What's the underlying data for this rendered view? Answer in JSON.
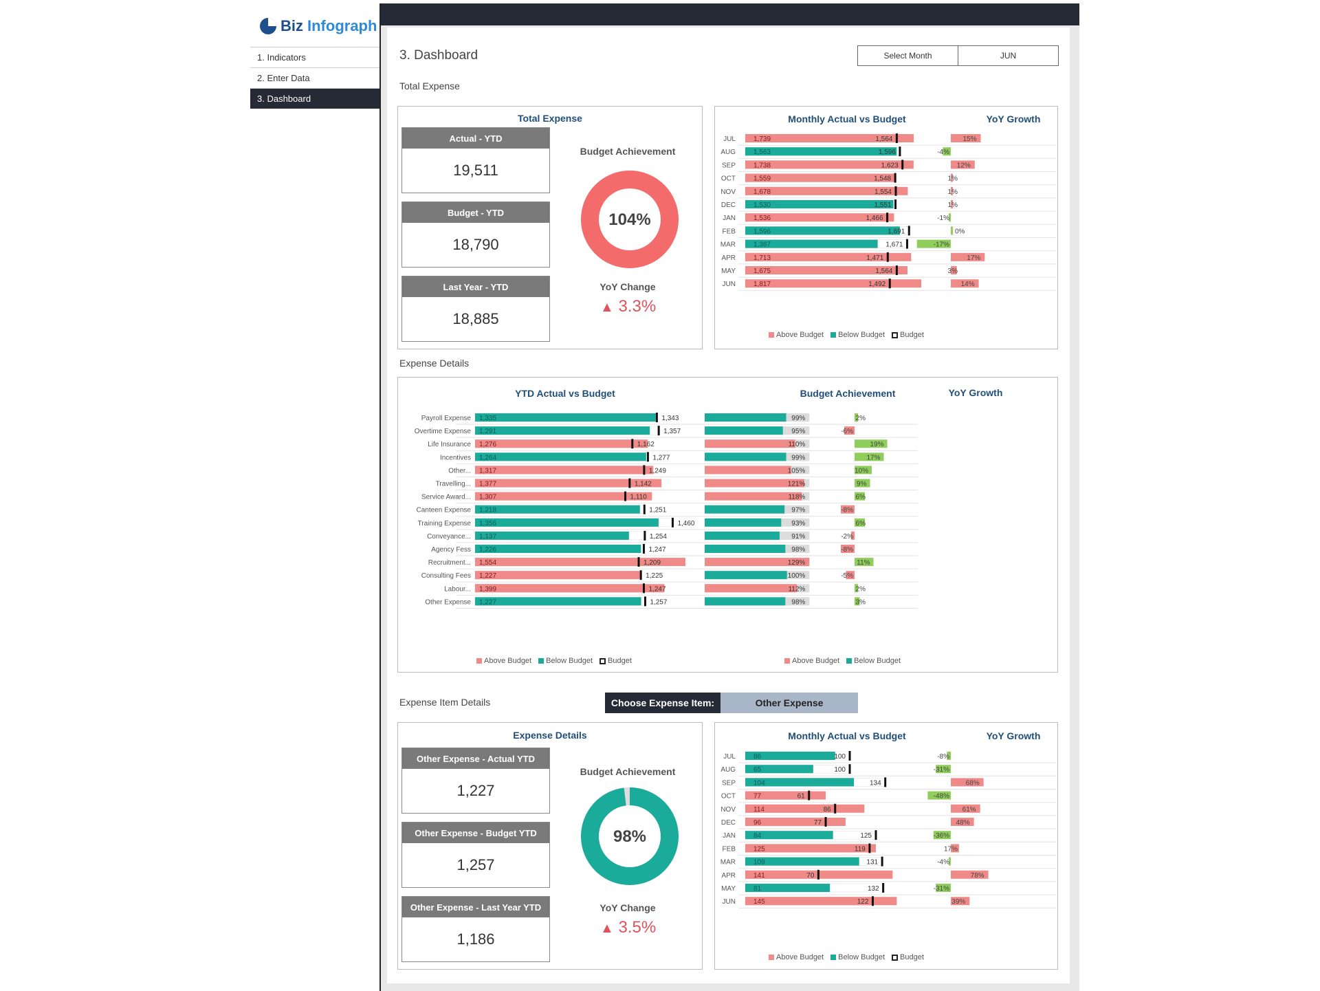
{
  "app": {
    "logo_part1": "Biz",
    "logo_part2": "Infograph"
  },
  "nav": [
    "1. Indicators",
    "2. Enter Data",
    "3. Dashboard"
  ],
  "page_title": "3. Dashboard",
  "month_select": {
    "label": "Select Month",
    "value": "JUN"
  },
  "sections": {
    "total_expense": "Total Expense",
    "expense_details": "Expense Details",
    "expense_item_details": "Expense Item Details"
  },
  "total_panel": {
    "title": "Total Expense",
    "kpis": [
      {
        "label": "Actual - YTD",
        "value": "19,511"
      },
      {
        "label": "Budget - YTD",
        "value": "18,790"
      },
      {
        "label": "Last Year - YTD",
        "value": "18,885"
      }
    ],
    "budget_achievement_label": "Budget Achievement",
    "budget_achievement_value": "104%",
    "budget_achievement_fraction": 1.04,
    "yoy_label": "YoY Change",
    "yoy_value": "3.3%"
  },
  "item_panel": {
    "title": "Expense Details",
    "kpis": [
      {
        "label": "Other Expense - Actual YTD",
        "value": "1,227"
      },
      {
        "label": "Other Expense - Budget YTD",
        "value": "1,257"
      },
      {
        "label": "Other Expense - Last Year YTD",
        "value": "1,186"
      }
    ],
    "budget_achievement_label": "Budget Achievement",
    "budget_achievement_value": "98%",
    "budget_achievement_fraction": 0.98,
    "yoy_label": "YoY Change",
    "yoy_value": "3.5%"
  },
  "choose_item": {
    "label": "Choose Expense Item:",
    "value": "Other Expense"
  },
  "legend": {
    "above": "Above Budget",
    "below": "Below Budget",
    "budget": "Budget"
  },
  "colors": {
    "above": "#f08a88",
    "below": "#1aab9b",
    "positive_growth": "#8fce5a",
    "dark": "#262a36",
    "title_blue": "#1f4e79"
  },
  "chart_data": [
    {
      "type": "bar",
      "title": "Monthly Actual vs Budget",
      "categories": [
        "JUL",
        "AUG",
        "SEP",
        "OCT",
        "NOV",
        "DEC",
        "JAN",
        "FEB",
        "MAR",
        "APR",
        "MAY",
        "JUN"
      ],
      "series": [
        {
          "name": "Actual",
          "values": [
            1739,
            1563,
            1738,
            1559,
            1678,
            1530,
            1536,
            1596,
            1367,
            1713,
            1675,
            1817
          ]
        },
        {
          "name": "Budget",
          "values": [
            1564,
            1596,
            1623,
            1548,
            1554,
            1551,
            1466,
            1691,
            1671,
            1471,
            1564,
            1492
          ]
        }
      ],
      "yoy_title": "YoY Growth",
      "yoy_growth": [
        "15%",
        "-4%",
        "12%",
        "1%",
        "1%",
        "1%",
        "-1%",
        "0%",
        "-17%",
        "17%",
        "3%",
        "14%"
      ],
      "yoy_values": [
        15,
        -4,
        12,
        1,
        1,
        1,
        -1,
        0,
        -17,
        17,
        3,
        14
      ]
    },
    {
      "type": "bar",
      "title": "YTD Actual vs Budget",
      "categories": [
        "Payroll Expense",
        "Overtime Expense",
        "Life Insurance",
        "Incentives",
        "Other...",
        "Travelling...",
        "Service Award...",
        "Canteen Expense",
        "Training Expense",
        "Conveyance...",
        "Agency Fess",
        "Recruitment...",
        "Consulting Fees",
        "Labour...",
        "Other Expense"
      ],
      "series": [
        {
          "name": "Actual",
          "values": [
            1335,
            1291,
            1276,
            1264,
            1317,
            1377,
            1307,
            1218,
            1356,
            1137,
            1226,
            1554,
            1227,
            1399,
            1227
          ]
        },
        {
          "name": "Budget",
          "values": [
            1343,
            1357,
            1162,
            1277,
            1249,
            1142,
            1110,
            1251,
            1460,
            1254,
            1247,
            1209,
            1225,
            1247,
            1257
          ]
        }
      ],
      "achievement_title": "Budget Achievement",
      "achievement": [
        "99%",
        "95%",
        "110%",
        "99%",
        "105%",
        "121%",
        "118%",
        "97%",
        "93%",
        "91%",
        "98%",
        "129%",
        "100%",
        "112%",
        "98%"
      ],
      "achievement_values": [
        99,
        95,
        110,
        99,
        105,
        121,
        118,
        97,
        93,
        91,
        98,
        129,
        100,
        112,
        98
      ],
      "yoy_title": "YoY Growth",
      "yoy_growth": [
        "2%",
        "-6%",
        "19%",
        "17%",
        "10%",
        "9%",
        "6%",
        "-8%",
        "6%",
        "-2%",
        "-8%",
        "11%",
        "-5%",
        "2%",
        "3%"
      ],
      "yoy_values": [
        2,
        -6,
        19,
        17,
        10,
        9,
        6,
        -8,
        6,
        -2,
        -8,
        11,
        -5,
        2,
        3
      ]
    },
    {
      "type": "bar",
      "title": "Monthly Actual vs Budget",
      "categories": [
        "JUL",
        "AUG",
        "SEP",
        "OCT",
        "NOV",
        "DEC",
        "JAN",
        "FEB",
        "MAR",
        "APR",
        "MAY",
        "JUN"
      ],
      "series": [
        {
          "name": "Actual",
          "values": [
            86,
            65,
            104,
            77,
            114,
            96,
            84,
            125,
            109,
            141,
            81,
            145
          ]
        },
        {
          "name": "Budget",
          "values": [
            100,
            100,
            134,
            61,
            86,
            77,
            125,
            119,
            131,
            70,
            132,
            122
          ]
        }
      ],
      "yoy_title": "YoY Growth",
      "yoy_growth": [
        "-8%",
        "-31%",
        "68%",
        "-48%",
        "61%",
        "48%",
        "-36%",
        "17%",
        "-4%",
        "78%",
        "-31%",
        "39%"
      ],
      "yoy_values": [
        -8,
        -31,
        68,
        -48,
        61,
        48,
        -36,
        17,
        -4,
        78,
        -31,
        39
      ]
    }
  ]
}
